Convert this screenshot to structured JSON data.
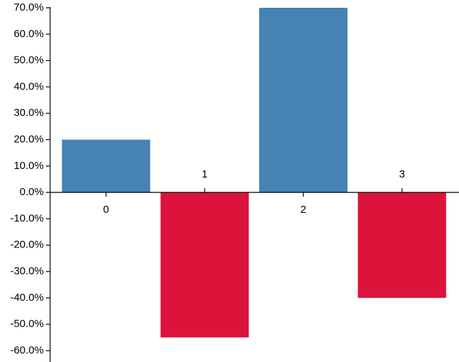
{
  "chart_data": {
    "type": "bar",
    "categories": [
      "0",
      "1",
      "2",
      "3"
    ],
    "values": [
      20,
      -55,
      70,
      -40
    ],
    "colors": [
      "#4682b4",
      "#dc143c",
      "#4682b4",
      "#dc143c"
    ],
    "ylim": [
      -64.3,
      70
    ],
    "yticks": [
      {
        "value": 70,
        "label": "70.0%"
      },
      {
        "value": 60,
        "label": "60.0%"
      },
      {
        "value": 50,
        "label": "50.0%"
      },
      {
        "value": 40,
        "label": "40.0%"
      },
      {
        "value": 30,
        "label": "30.0%"
      },
      {
        "value": 20,
        "label": "20.0%"
      },
      {
        "value": 10,
        "label": "10.0%"
      },
      {
        "value": 0,
        "label": "0.0%"
      },
      {
        "value": -10,
        "label": "-10.0%"
      },
      {
        "value": -20,
        "label": "-20.0%"
      },
      {
        "value": -30,
        "label": "-30.0%"
      },
      {
        "value": -40,
        "label": "-40.0%"
      },
      {
        "value": -50,
        "label": "-50.0%"
      },
      {
        "value": -60,
        "label": "-60.0%"
      }
    ],
    "grid": false
  }
}
